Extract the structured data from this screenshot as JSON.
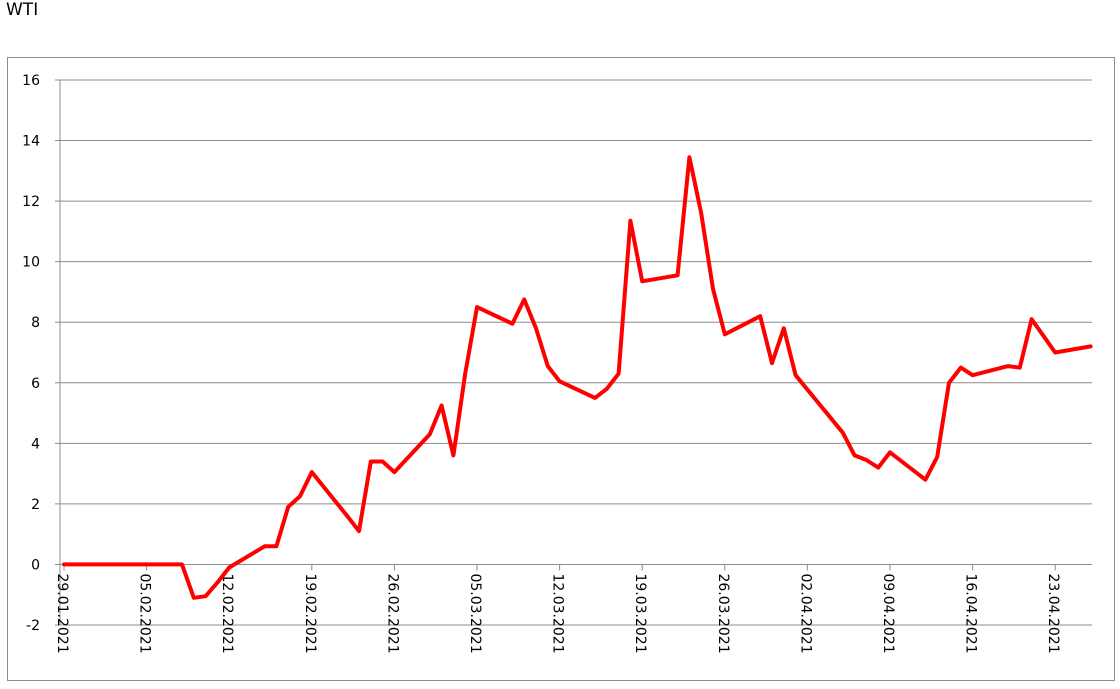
{
  "page": {
    "title": "WTI"
  },
  "chart_data": {
    "type": "line",
    "title": "WTI",
    "xlabel": "",
    "ylabel": "",
    "ylim": [
      -2,
      16
    ],
    "yticks": [
      -2,
      0,
      2,
      4,
      6,
      8,
      10,
      12,
      14,
      16
    ],
    "xlim": [
      "2021-01-29",
      "2021-04-26"
    ],
    "xtick_labels": [
      "29.01.2021",
      "05.02.2021",
      "12.02.2021",
      "19.02.2021",
      "26.02.2021",
      "05.03.2021",
      "12.03.2021",
      "19.03.2021",
      "26.03.2021",
      "02.04.2021",
      "09.04.2021",
      "16.04.2021",
      "23.04.2021"
    ],
    "grid": "horizontal",
    "line_color": "#ff0000",
    "series": [
      {
        "x": [
          "2021-01-29",
          "2021-02-01",
          "2021-02-02",
          "2021-02-03",
          "2021-02-04",
          "2021-02-05",
          "2021-02-08",
          "2021-02-09",
          "2021-02-10",
          "2021-02-11",
          "2021-02-12",
          "2021-02-15",
          "2021-02-16",
          "2021-02-17",
          "2021-02-18",
          "2021-02-19",
          "2021-02-22",
          "2021-02-23",
          "2021-02-24",
          "2021-02-25",
          "2021-02-26",
          "2021-03-01",
          "2021-03-02",
          "2021-03-03",
          "2021-03-04",
          "2021-03-05",
          "2021-03-08",
          "2021-03-09",
          "2021-03-10",
          "2021-03-11",
          "2021-03-12",
          "2021-03-15",
          "2021-03-16",
          "2021-03-17",
          "2021-03-18",
          "2021-03-19",
          "2021-03-22",
          "2021-03-23",
          "2021-03-24",
          "2021-03-25",
          "2021-03-26",
          "2021-03-29",
          "2021-03-30",
          "2021-03-31",
          "2021-04-01",
          "2021-04-05",
          "2021-04-06",
          "2021-04-07",
          "2021-04-08",
          "2021-04-09",
          "2021-04-12",
          "2021-04-13",
          "2021-04-14",
          "2021-04-15",
          "2021-04-16",
          "2021-04-19",
          "2021-04-20",
          "2021-04-21",
          "2021-04-22",
          "2021-04-23",
          "2021-04-26"
        ],
        "values": [
          0,
          0,
          0,
          0,
          0,
          0,
          0,
          -1.1,
          -1.05,
          -0.6,
          -0.1,
          0.6,
          0.6,
          1.9,
          2.25,
          3.05,
          1.6,
          1.1,
          3.4,
          3.4,
          3.05,
          4.3,
          5.25,
          3.6,
          6.3,
          8.5,
          7.95,
          8.75,
          7.8,
          6.55,
          6.05,
          5.5,
          5.8,
          6.3,
          11.35,
          9.35,
          9.55,
          13.45,
          11.6,
          9.1,
          7.6,
          8.2,
          6.65,
          7.8,
          6.25,
          4.35,
          3.6,
          3.45,
          3.2,
          3.7,
          2.8,
          3.55,
          6.0,
          6.5,
          6.25,
          6.55,
          6.5,
          8.1,
          7.55,
          7.0,
          7.2
        ]
      }
    ]
  }
}
